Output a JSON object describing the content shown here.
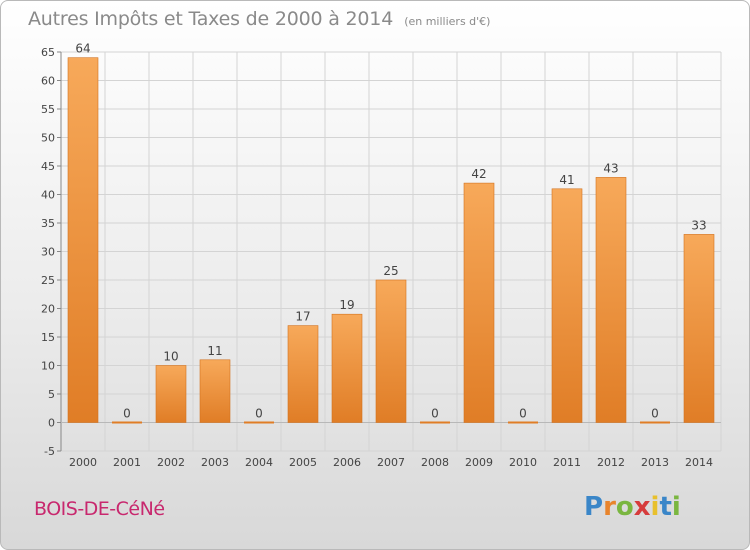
{
  "header": {
    "title": "Autres Impôts et Taxes de 2000 à 2014",
    "unit": "(en milliers d'€)"
  },
  "footer": {
    "commune": "BOIS-DE-CéNé",
    "brand": "Proxiti"
  },
  "colors": {
    "bar_light": "#f7a95a",
    "bar_dark": "#e07d26",
    "commune_text": "#c8286e",
    "title_text": "#8a8a8a"
  },
  "chart_data": {
    "type": "bar",
    "title": "Autres Impôts et Taxes de 2000 à 2014",
    "subtitle": "(en milliers d'€)",
    "categories": [
      "2000",
      "2001",
      "2002",
      "2003",
      "2004",
      "2005",
      "2006",
      "2007",
      "2008",
      "2009",
      "2010",
      "2011",
      "2012",
      "2013",
      "2014"
    ],
    "values": [
      64,
      0,
      10,
      11,
      0,
      17,
      19,
      25,
      0,
      42,
      0,
      41,
      43,
      0,
      33
    ],
    "data_labels": [
      "64",
      "0",
      "10",
      "11",
      "0",
      "17",
      "19",
      "25",
      "0",
      "42",
      "0",
      "41",
      "43",
      "0",
      "33"
    ],
    "ylim": [
      -5,
      65
    ],
    "yticks": [
      -5,
      0,
      5,
      10,
      15,
      20,
      25,
      30,
      35,
      40,
      45,
      50,
      55,
      60,
      65
    ],
    "grid": true,
    "xlabel": "",
    "ylabel": ""
  }
}
